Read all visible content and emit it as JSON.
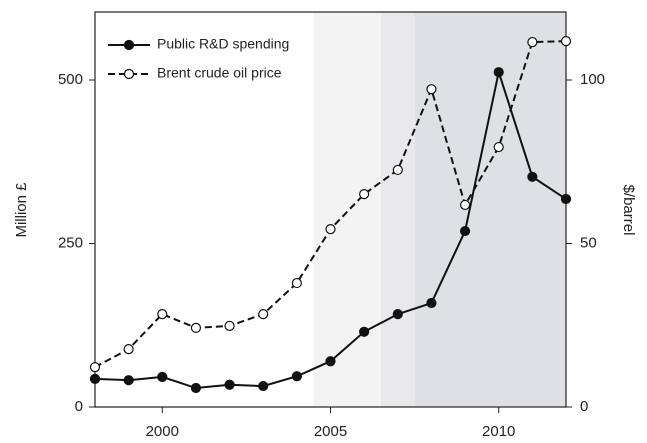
{
  "chart_data": {
    "type": "line",
    "x": [
      1998,
      1999,
      2000,
      2001,
      2002,
      2003,
      2004,
      2005,
      2006,
      2007,
      2008,
      2009,
      2010,
      2011,
      2012
    ],
    "xlim": [
      1998,
      2012
    ],
    "xticks": [
      2000,
      2005,
      2010
    ],
    "ylim": [
      0,
      604
    ],
    "yticks": [
      0,
      250,
      500
    ],
    "ylabel": "Million £",
    "y2lim": [
      0,
      120.8
    ],
    "y2ticks": [
      0,
      50,
      100
    ],
    "y2label": "$/barrel",
    "legend": "upper left",
    "shaded_regions": [
      {
        "from": 2004.5,
        "to": 2006.5,
        "color": "#f3f3f4"
      },
      {
        "from": 2006.5,
        "to": 2007.5,
        "color": "#e9e9eb"
      },
      {
        "from": 2007.5,
        "to": 2012,
        "color": "#dfe0e3"
      }
    ],
    "series": [
      {
        "name": "Public R&D spending",
        "color": "#111111",
        "style": "solid",
        "marker": "filled",
        "values": [
          43,
          41,
          46,
          29,
          34,
          32,
          47,
          70,
          115,
          142,
          159,
          269,
          512,
          352,
          318
        ]
      },
      {
        "name": "Brent crude oil price",
        "color": "#111111",
        "style": "dashed",
        "marker": "open",
        "axis": "y2",
        "values": [
          12.2,
          17.7,
          28.4,
          24.2,
          24.8,
          28.4,
          37.9,
          54.4,
          65.1,
          72.5,
          97.2,
          61.8,
          79.5,
          111.6,
          111.9
        ]
      }
    ]
  }
}
